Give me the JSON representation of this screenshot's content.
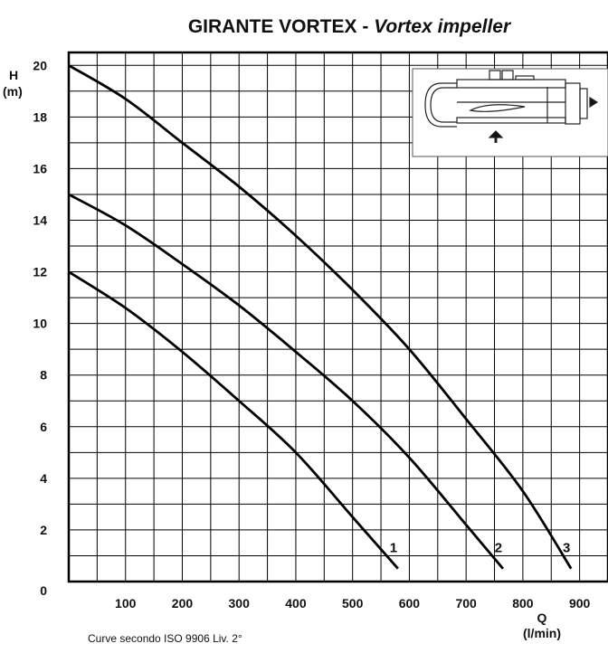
{
  "chart_data": {
    "type": "line",
    "title_main": "GIRANTE VORTEX - ",
    "title_italic": "Vortex impeller",
    "ylabel": "H",
    "yunit": "(m)",
    "xlabel": "Q",
    "xunit": "(l/min)",
    "footnote": "Curve secondo ISO 9906 Liv. 2°",
    "xlim": [
      0,
      950
    ],
    "ylim": [
      0,
      20.5
    ],
    "x_ticks": [
      "100",
      "200",
      "300",
      "400",
      "500",
      "600",
      "700",
      "800",
      "900"
    ],
    "y_ticks": [
      "0",
      "2",
      "4",
      "6",
      "8",
      "10",
      "12",
      "14",
      "16",
      "18",
      "20"
    ],
    "grid": true,
    "series": [
      {
        "name": "1",
        "x": [
          0,
          100,
          200,
          300,
          400,
          500,
          580
        ],
        "y": [
          12,
          10.6,
          8.9,
          7,
          5,
          2.5,
          0.5
        ]
      },
      {
        "name": "2",
        "x": [
          0,
          100,
          200,
          300,
          400,
          500,
          600,
          700,
          765
        ],
        "y": [
          15,
          13.8,
          12.3,
          10.7,
          8.9,
          7,
          4.8,
          2.2,
          0.5
        ]
      },
      {
        "name": "3",
        "x": [
          0,
          100,
          200,
          300,
          400,
          500,
          600,
          700,
          800,
          885
        ],
        "y": [
          20,
          18.7,
          17,
          15.3,
          13.4,
          11.3,
          9,
          6.3,
          3.5,
          0.5
        ]
      }
    ]
  }
}
